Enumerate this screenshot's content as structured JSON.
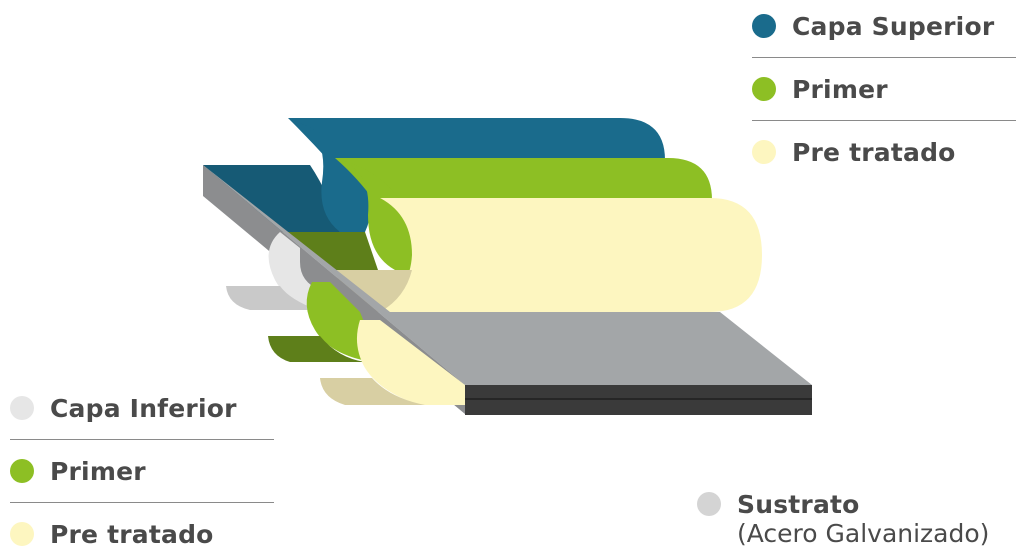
{
  "colors": {
    "top_coat": "#1a6b8c",
    "top_coat_dark": "#165a75",
    "primer": "#8dbf24",
    "primer_dark": "#5e7f1a",
    "pretreat": "#fdf6c0",
    "pretreat_shade": "#d8cfa3",
    "bottom_coat": "#e6e6e6",
    "bottom_coat_shade": "#c9c9c9",
    "substrate_top": "#a3a6a8",
    "substrate_edge": "#3a3a3a",
    "substrate_side": "#8c8d8f",
    "substrate_dot": "#d4d4d4",
    "separator": "#8a8a8a",
    "text": "#4a4a4a"
  },
  "legend_top": [
    {
      "label": "Capa Superior",
      "color": "#1a6b8c",
      "icon": "dot-icon"
    },
    {
      "label": "Primer",
      "color": "#8dbf24",
      "icon": "dot-icon"
    },
    {
      "label": "Pre tratado",
      "color": "#fdf6c0",
      "icon": "dot-icon"
    }
  ],
  "legend_bottom": [
    {
      "label": "Capa Inferior",
      "color": "#e6e6e6",
      "icon": "dot-icon"
    },
    {
      "label": "Primer",
      "color": "#8dbf24",
      "icon": "dot-icon"
    },
    {
      "label": "Pre tratado",
      "color": "#fdf6c0",
      "icon": "dot-icon"
    }
  ],
  "substrate": {
    "label": "Sustrato",
    "note": "(Acero Galvanizado)",
    "color": "#d4d4d4"
  }
}
